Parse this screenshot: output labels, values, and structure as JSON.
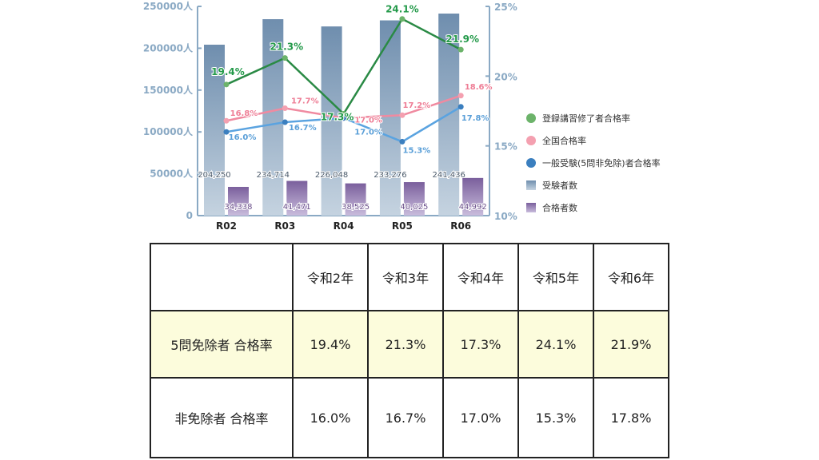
{
  "chart_data": {
    "type": "bar+line",
    "categories": [
      "R02",
      "R03",
      "R04",
      "R05",
      "R06"
    ],
    "left_axis": {
      "ticks": [
        "0",
        "50000人",
        "100000人",
        "150000人",
        "200000人",
        "250000人"
      ],
      "ylim": [
        0,
        250000
      ]
    },
    "right_axis": {
      "ticks": [
        "10%",
        "15%",
        "20%",
        "25%"
      ],
      "ylim": [
        10,
        25
      ]
    },
    "bars": [
      {
        "name": "受験者数",
        "values": [
          204250,
          234714,
          226048,
          233276,
          241436
        ],
        "labels": [
          "204,250",
          "234,714",
          "226,048",
          "233,276",
          "241,436"
        ],
        "color": "#7f9ab6"
      },
      {
        "name": "合格者数",
        "values": [
          34338,
          41471,
          38525,
          40025,
          44992
        ],
        "labels": [
          "34,338",
          "41,471",
          "38,525",
          "40,025",
          "44,992"
        ],
        "color": "#8a73a8"
      }
    ],
    "lines": [
      {
        "name": "登録講習修了者合格率",
        "values": [
          19.4,
          21.3,
          17.3,
          24.1,
          21.9
        ],
        "labels": [
          "19.4%",
          "21.3%",
          "17.3%",
          "24.1%",
          "21.9%"
        ],
        "color": "#2a8a45",
        "marker": "#6cb36a"
      },
      {
        "name": "全国合格率",
        "values": [
          16.8,
          17.7,
          17.0,
          17.2,
          18.6
        ],
        "labels": [
          "16.8%",
          "17.7%",
          "17.0%",
          "17.2%",
          "18.6%"
        ],
        "color": "#f08aa0",
        "marker": "#f4a0b0"
      },
      {
        "name": "一般受験(5問非免除)者合格率",
        "values": [
          16.0,
          16.7,
          17.0,
          15.3,
          17.8
        ],
        "labels": [
          "16.0%",
          "16.7%",
          "17.0%",
          "15.3%",
          "17.8%"
        ],
        "color": "#5aa3e0",
        "marker": "#3b7fbf"
      }
    ],
    "legend": [
      "登録講習修了者合格率",
      "全国合格率",
      "一般受験(5問非免除)者合格率",
      "受験者数",
      "合格者数"
    ],
    "legend_position": "right"
  },
  "table": {
    "header": [
      "",
      "令和2年",
      "令和3年",
      "令和4年",
      "令和5年",
      "令和6年"
    ],
    "rows": [
      [
        "5問免除者 合格率",
        "19.4%",
        "21.3%",
        "17.3%",
        "24.1%",
        "21.9%"
      ],
      [
        "非免除者 合格率",
        "16.0%",
        "16.7%",
        "17.0%",
        "15.3%",
        "17.8%"
      ]
    ]
  }
}
